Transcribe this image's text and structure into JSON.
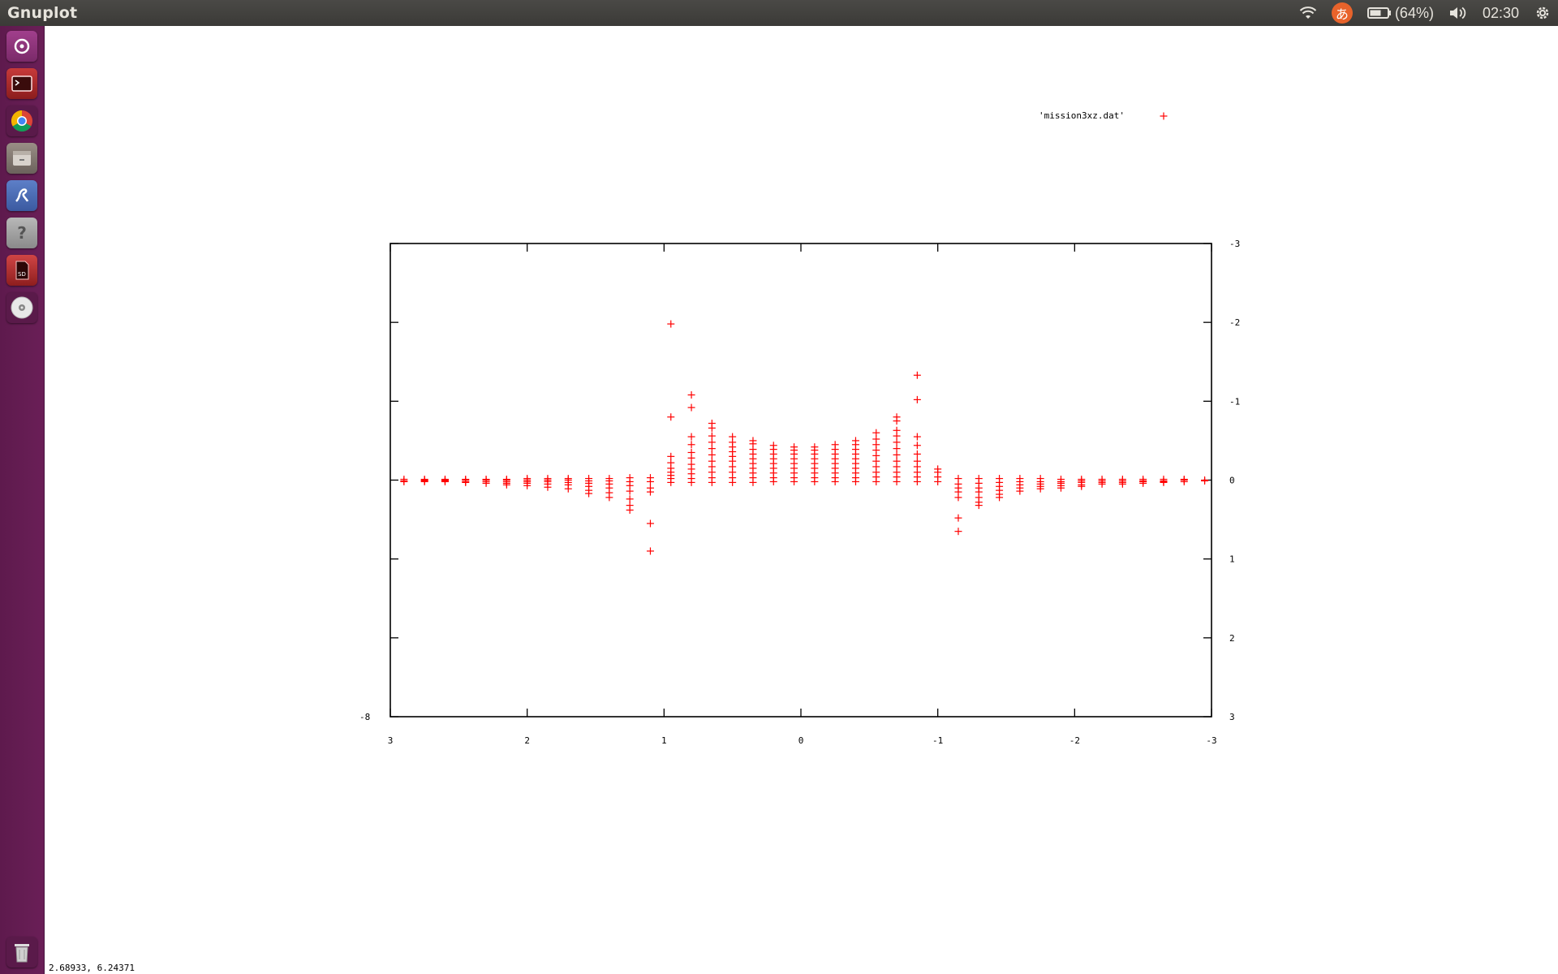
{
  "window": {
    "title": "Gnuplot"
  },
  "panel": {
    "battery_text": "(64%)",
    "clock": "02:30",
    "input_method": "あ"
  },
  "launcher": {
    "items": [
      "dash-home",
      "terminal",
      "chrome",
      "files",
      "text-editor",
      "unknown-app",
      "sd-card",
      "dvd-drive",
      "trash"
    ]
  },
  "status": {
    "coordinates": "2.68933,  6.24371"
  },
  "chart_data": {
    "type": "scatter",
    "title": "",
    "xlabel": "",
    "ylabel": "",
    "xlim": [
      3,
      -3
    ],
    "ylim": [
      -3,
      3
    ],
    "x_ticks": [
      3,
      2,
      1,
      0,
      -1,
      -2,
      -3
    ],
    "y_ticks": [
      -3,
      -2,
      -1,
      0,
      1,
      2,
      3
    ],
    "y_tick_labels": [
      "-3",
      "-2",
      "-1",
      "0",
      "1",
      "2",
      "3"
    ],
    "x_tick_labels": [
      "3",
      "2",
      "1",
      "0",
      "-1",
      "-2",
      "-3"
    ],
    "left_axis_label": "-8",
    "legend": {
      "label": "'mission3xz.dat'",
      "position": "top-right",
      "marker": "+",
      "color": "#ff0000"
    },
    "columns": [
      {
        "x": 2.9,
        "y": [
          -0.01,
          0.01,
          0.02
        ]
      },
      {
        "x": 2.75,
        "y": [
          -0.01,
          0.0,
          0.01,
          0.02
        ]
      },
      {
        "x": 2.6,
        "y": [
          -0.01,
          0.0,
          0.01,
          0.02
        ]
      },
      {
        "x": 2.45,
        "y": [
          -0.01,
          0.0,
          0.02,
          0.03
        ]
      },
      {
        "x": 2.3,
        "y": [
          -0.01,
          0.0,
          0.02,
          0.04
        ]
      },
      {
        "x": 2.15,
        "y": [
          -0.01,
          0.0,
          0.02,
          0.04,
          0.06
        ]
      },
      {
        "x": 2.0,
        "y": [
          -0.02,
          0.0,
          0.02,
          0.04,
          0.07
        ]
      },
      {
        "x": 1.85,
        "y": [
          -0.02,
          0.0,
          0.02,
          0.05,
          0.09
        ]
      },
      {
        "x": 1.7,
        "y": [
          -0.02,
          0.0,
          0.03,
          0.06,
          0.11
        ]
      },
      {
        "x": 1.55,
        "y": [
          -0.02,
          0.01,
          0.04,
          0.08,
          0.13,
          0.17
        ]
      },
      {
        "x": 1.4,
        "y": [
          -0.02,
          0.01,
          0.05,
          0.1,
          0.16,
          0.22
        ]
      },
      {
        "x": 1.25,
        "y": [
          -0.03,
          0.02,
          0.07,
          0.14,
          0.24,
          0.32,
          0.38
        ]
      },
      {
        "x": 1.1,
        "y": [
          -0.03,
          0.02,
          0.1,
          0.15,
          0.55,
          0.9
        ]
      },
      {
        "x": 0.95,
        "y": [
          0.03,
          -0.02,
          -0.06,
          -0.1,
          -0.15,
          -0.22,
          -0.3,
          -0.8,
          -1.98
        ]
      },
      {
        "x": 0.8,
        "y": [
          0.03,
          -0.02,
          -0.08,
          -0.14,
          -0.2,
          -0.28,
          -0.35,
          -0.45,
          -0.55,
          -0.92,
          -1.08
        ]
      },
      {
        "x": 0.65,
        "y": [
          0.03,
          -0.03,
          -0.1,
          -0.17,
          -0.24,
          -0.32,
          -0.4,
          -0.48,
          -0.56,
          -0.66,
          -0.72
        ]
      },
      {
        "x": 0.5,
        "y": [
          0.03,
          -0.03,
          -0.1,
          -0.17,
          -0.24,
          -0.3,
          -0.36,
          -0.42,
          -0.48,
          -0.55
        ]
      },
      {
        "x": 0.35,
        "y": [
          0.03,
          -0.03,
          -0.09,
          -0.15,
          -0.21,
          -0.27,
          -0.33,
          -0.39,
          -0.46,
          -0.5
        ]
      },
      {
        "x": 0.2,
        "y": [
          0.02,
          -0.03,
          -0.09,
          -0.15,
          -0.21,
          -0.27,
          -0.33,
          -0.39,
          -0.44
        ]
      },
      {
        "x": 0.05,
        "y": [
          0.02,
          -0.03,
          -0.09,
          -0.15,
          -0.21,
          -0.27,
          -0.33,
          -0.38,
          -0.42
        ]
      },
      {
        "x": -0.1,
        "y": [
          0.02,
          -0.03,
          -0.09,
          -0.15,
          -0.21,
          -0.27,
          -0.33,
          -0.38,
          -0.42
        ]
      },
      {
        "x": -0.25,
        "y": [
          0.02,
          -0.03,
          -0.09,
          -0.15,
          -0.21,
          -0.27,
          -0.33,
          -0.39,
          -0.45
        ]
      },
      {
        "x": -0.4,
        "y": [
          0.02,
          -0.03,
          -0.09,
          -0.15,
          -0.21,
          -0.27,
          -0.33,
          -0.39,
          -0.45,
          -0.5
        ]
      },
      {
        "x": -0.55,
        "y": [
          0.02,
          -0.04,
          -0.1,
          -0.17,
          -0.24,
          -0.31,
          -0.38,
          -0.45,
          -0.52,
          -0.6
        ]
      },
      {
        "x": -0.7,
        "y": [
          0.02,
          -0.04,
          -0.1,
          -0.17,
          -0.24,
          -0.32,
          -0.4,
          -0.48,
          -0.56,
          -0.63,
          -0.75,
          -0.8
        ]
      },
      {
        "x": -0.85,
        "y": [
          0.02,
          -0.04,
          -0.1,
          -0.17,
          -0.24,
          -0.33,
          -0.44,
          -0.55,
          -1.02,
          -1.33
        ]
      },
      {
        "x": -1.0,
        "y": [
          0.02,
          -0.04,
          -0.1,
          -0.14
        ]
      },
      {
        "x": -1.15,
        "y": [
          -0.02,
          0.05,
          0.1,
          0.15,
          0.22,
          0.48,
          0.65
        ]
      },
      {
        "x": -1.3,
        "y": [
          -0.02,
          0.04,
          0.1,
          0.15,
          0.22,
          0.28,
          0.32
        ]
      },
      {
        "x": -1.45,
        "y": [
          -0.02,
          0.03,
          0.08,
          0.13,
          0.18,
          0.22
        ]
      },
      {
        "x": -1.6,
        "y": [
          -0.02,
          0.02,
          0.06,
          0.1,
          0.14
        ]
      },
      {
        "x": -1.75,
        "y": [
          -0.02,
          0.02,
          0.05,
          0.08,
          0.11
        ]
      },
      {
        "x": -1.9,
        "y": [
          -0.01,
          0.02,
          0.04,
          0.07,
          0.1
        ]
      },
      {
        "x": -2.05,
        "y": [
          -0.01,
          0.01,
          0.03,
          0.06,
          0.08
        ]
      },
      {
        "x": -2.2,
        "y": [
          -0.01,
          0.01,
          0.03,
          0.05
        ]
      },
      {
        "x": -2.35,
        "y": [
          -0.01,
          0.01,
          0.03,
          0.05
        ]
      },
      {
        "x": -2.5,
        "y": [
          -0.01,
          0.01,
          0.02,
          0.04
        ]
      },
      {
        "x": -2.65,
        "y": [
          -0.01,
          0.01,
          0.02,
          0.03
        ]
      },
      {
        "x": -2.8,
        "y": [
          -0.01,
          0.0,
          0.02
        ]
      },
      {
        "x": -2.95,
        "y": [
          0.0,
          0.01
        ]
      }
    ]
  }
}
